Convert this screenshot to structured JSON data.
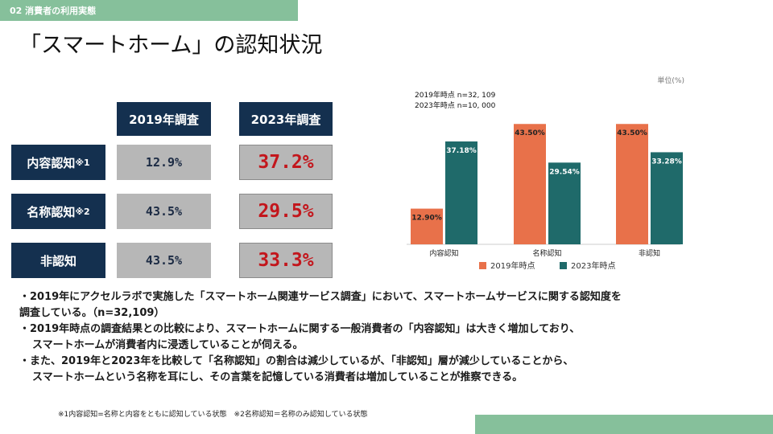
{
  "header": {
    "section_label": "02 消費者の利用実態"
  },
  "title": "「スマートホーム」の認知状況",
  "table": {
    "col_2019": "2019年調査",
    "col_2023": "2023年調査",
    "rows": [
      {
        "label": "内容認知",
        "note": "※1",
        "v2019": "12.9%",
        "v2023": "37.2%"
      },
      {
        "label": "名称認知",
        "note": "※2",
        "v2019": "43.5%",
        "v2023": "29.5%"
      },
      {
        "label": "非認知",
        "note": "",
        "v2019": "43.5%",
        "v2023": "33.3%"
      }
    ]
  },
  "chart_data": {
    "type": "bar",
    "unit_label": "単位(%)",
    "sample_2019": "2019年時点 n=32, 109",
    "sample_2023": "2023年時点 n=10, 000",
    "categories": [
      "内容認知",
      "名称認知",
      "非認知"
    ],
    "ylim": [
      0,
      50
    ],
    "series": [
      {
        "name": "2019年時点",
        "color": "#e8714a",
        "values": [
          12.9,
          43.5,
          43.5
        ],
        "labels": [
          "12.90%",
          "43.50%",
          "43.50%"
        ]
      },
      {
        "name": "2023年時点",
        "color": "#1f6a6a",
        "values": [
          37.18,
          29.54,
          33.28
        ],
        "labels": [
          "37.18%",
          "29.54%",
          "33.28%"
        ]
      }
    ]
  },
  "bullets": [
    "・2019年にアクセルラボで実施した「スマートホーム関連サービス調査」において、スマートホームサービスに関する認知度を",
    "調査している。（n=32,109）",
    "・2019年時点の調査結果との比較により、スマートホームに関する一般消費者の「内容認知」は大きく増加しており、",
    "スマートホームが消費者内に浸透していることが伺える。",
    "・また、2019年と2023年を比較して「名称認知」の割合は減少しているが、「非認知」層が減少していることから、",
    "スマートホームという名称を耳にし、その言葉を記憶している消費者は増加していることが推察できる。"
  ],
  "footnote": "※1内容認知=名称と内容をともに認知している状態　※2名称認知＝名称のみ認知している状態"
}
